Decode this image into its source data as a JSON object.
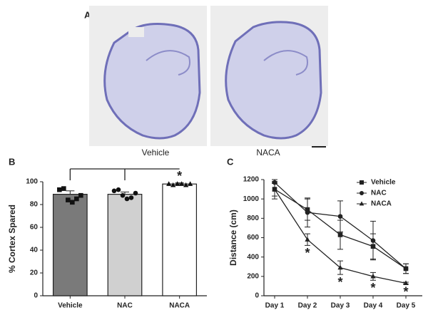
{
  "panel_a": {
    "label": "A",
    "captions": [
      "Vehicle",
      "NACA"
    ]
  },
  "chart_data": [
    {
      "type": "bar",
      "panel_label": "B",
      "ylabel": "% Cortex Spared",
      "categories": [
        "Vehicle",
        "NAC",
        "NACA"
      ],
      "values": [
        89,
        89,
        98
      ],
      "errors": [
        3,
        2,
        1
      ],
      "colors": [
        "#7a7a7a",
        "#d0d0d0",
        "#ffffff"
      ],
      "markers": [
        "square",
        "circle",
        "triangle"
      ],
      "points": [
        [
          93,
          94,
          84,
          82,
          85,
          88
        ],
        [
          92,
          93,
          88,
          85,
          86,
          90
        ],
        [
          98,
          97,
          98,
          98,
          97,
          98
        ]
      ],
      "significance": [
        null,
        null,
        "*"
      ],
      "ylim": [
        0,
        100
      ],
      "yticks": [
        0,
        20,
        40,
        60,
        80,
        100
      ]
    },
    {
      "type": "line",
      "panel_label": "C",
      "ylabel": "Distance (cm)",
      "categories": [
        "Day 1",
        "Day 2",
        "Day 3",
        "Day 4",
        "Day 5"
      ],
      "series": [
        {
          "name": "Vehicle",
          "marker": "square",
          "color": "#222222",
          "values": [
            1100,
            890,
            630,
            510,
            280
          ],
          "errors": [
            100,
            110,
            150,
            130,
            50
          ]
        },
        {
          "name": "NAC",
          "marker": "circle",
          "color": "#222222",
          "values": [
            1170,
            860,
            820,
            570,
            280
          ],
          "errors": [
            10,
            150,
            160,
            200,
            50
          ]
        },
        {
          "name": "NACA",
          "marker": "triangle",
          "color": "#222222",
          "values": [
            1100,
            580,
            290,
            200,
            130
          ],
          "errors": [
            70,
            60,
            70,
            40,
            10
          ],
          "significance": [
            null,
            "*",
            "*",
            "*",
            "*"
          ]
        }
      ],
      "ylim": [
        0,
        1200
      ],
      "yticks": [
        0,
        200,
        400,
        600,
        800,
        1000,
        1200
      ]
    }
  ]
}
